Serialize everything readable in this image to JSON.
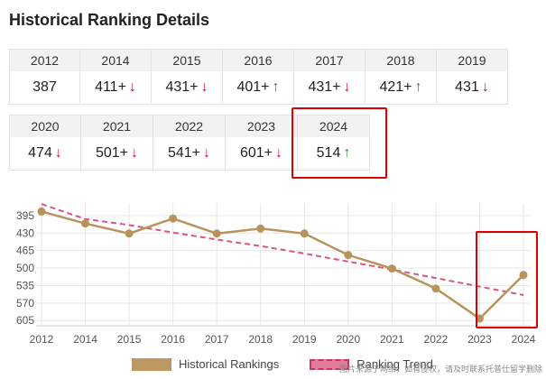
{
  "title": "Historical Ranking Details",
  "rankings": [
    {
      "year": "2012",
      "value": "387",
      "trend": ""
    },
    {
      "year": "2014",
      "value": "411+",
      "trend": "down"
    },
    {
      "year": "2015",
      "value": "431+",
      "trend": "down"
    },
    {
      "year": "2016",
      "value": "401+",
      "trend": "up"
    },
    {
      "year": "2017",
      "value": "431+",
      "trend": "down"
    },
    {
      "year": "2018",
      "value": "421+",
      "trend": "up"
    },
    {
      "year": "2019",
      "value": "431",
      "trend": "down"
    },
    {
      "year": "2020",
      "value": "474",
      "trend": "down"
    },
    {
      "year": "2021",
      "value": "501+",
      "trend": "down"
    },
    {
      "year": "2022",
      "value": "541+",
      "trend": "down"
    },
    {
      "year": "2023",
      "value": "601+",
      "trend": "down"
    },
    {
      "year": "2024",
      "value": "514",
      "trend": "up"
    }
  ],
  "arrows": {
    "up": "↑",
    "down": "↓"
  },
  "colors": {
    "historical": "#b8935e",
    "trend": "#d9577f",
    "highlight": "#e00000"
  },
  "chart_data": {
    "type": "line",
    "x": [
      "2012",
      "2014",
      "2015",
      "2016",
      "2017",
      "2018",
      "2019",
      "2020",
      "2021",
      "2022",
      "2023",
      "2024"
    ],
    "series": [
      {
        "name": "Historical Rankings",
        "values": [
          387,
          411,
          431,
          401,
          431,
          421,
          431,
          474,
          501,
          541,
          601,
          514
        ]
      },
      {
        "name": "Ranking Trend",
        "values": [
          372,
          402,
          414,
          429,
          443,
          456,
          471,
          487,
          503,
          520,
          537,
          554
        ],
        "style": "dashed"
      }
    ],
    "y_ticks": [
      395,
      430,
      465,
      500,
      535,
      570,
      605
    ],
    "ylim": [
      370,
      610
    ],
    "y_inverted": true,
    "grid": true,
    "legend_position": "bottom"
  },
  "legend": {
    "historical": "Historical Rankings",
    "trend": "Ranking Trend"
  },
  "watermark": "图片来源于网络，如有侵权，请及时联系托普仕留学删除"
}
